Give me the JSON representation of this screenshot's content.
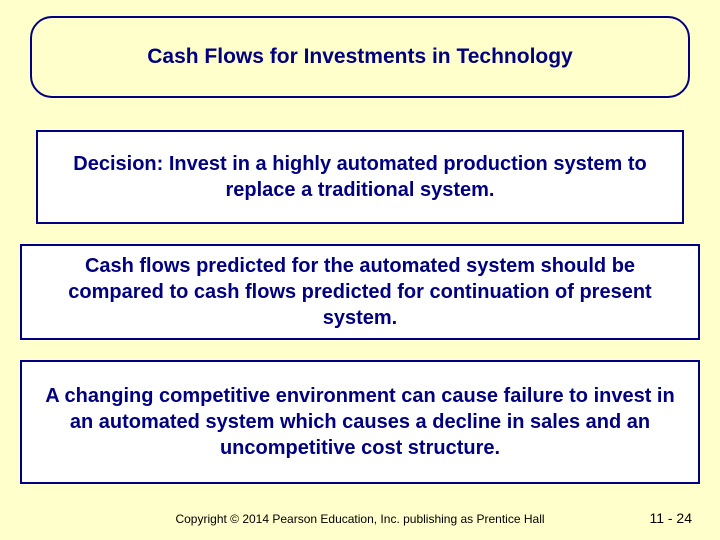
{
  "slide": {
    "background_color": "#ffffcc",
    "border_color": "#000080",
    "text_color": "#000080",
    "title": "Cash Flows for Investments in Technology",
    "title_fontsize": 21,
    "content_fontsize": 20,
    "boxes": [
      {
        "lines": "Decision:\nInvest in a highly automated production system to replace a traditional system."
      },
      {
        "lines": "Cash flows predicted for the automated system should be compared to cash flows predicted for continuation of present system."
      },
      {
        "lines": "A changing competitive environment can cause failure to invest in an automated system which causes a decline in sales and an uncompetitive cost structure."
      }
    ],
    "footer": {
      "copyright": "Copyright © 2014 Pearson Education, Inc. publishing as Prentice Hall",
      "page_number": "11 - 24"
    }
  }
}
